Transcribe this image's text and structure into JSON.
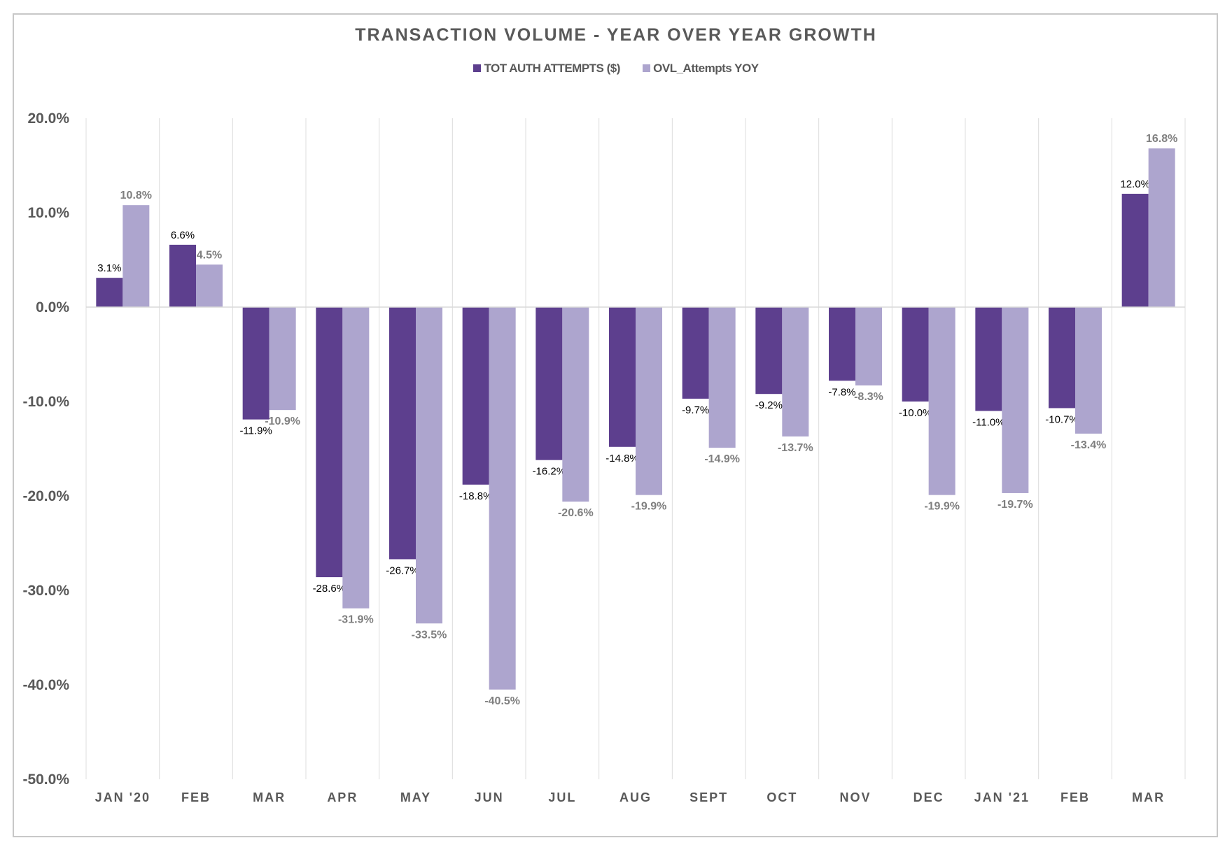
{
  "chart_data": {
    "type": "bar",
    "title": "TRANSACTION VOLUME - YEAR OVER YEAR GROWTH",
    "categories": [
      "JAN '20",
      "FEB",
      "MAR",
      "APR",
      "MAY",
      "JUN",
      "JUL",
      "AUG",
      "SEPT",
      "OCT",
      "NOV",
      "DEC",
      "JAN '21",
      "FEB",
      "MAR"
    ],
    "series": [
      {
        "name": "TOT AUTH ATTEMPTS ($)",
        "color": "#5D3F8E",
        "values": [
          3.1,
          6.6,
          -11.9,
          -28.6,
          -26.7,
          -18.8,
          -16.2,
          -14.8,
          -9.7,
          -9.2,
          -7.8,
          -10.0,
          -11.0,
          -10.7,
          12.0
        ]
      },
      {
        "name": "OVL_Attempts YOY",
        "color": "#ADA5CE",
        "values": [
          10.8,
          4.5,
          -10.9,
          -31.9,
          -33.5,
          -40.5,
          -20.6,
          -19.9,
          -14.9,
          -13.7,
          -8.3,
          -19.9,
          -19.7,
          -13.4,
          16.8
        ]
      }
    ],
    "yticks": [
      20,
      10,
      0,
      -10,
      -20,
      -30,
      -40,
      -50
    ],
    "ylim": [
      -50,
      20
    ],
    "value_format": "percent_1dp",
    "legend_position": "top-center",
    "xlabel": "",
    "ylabel": ""
  }
}
